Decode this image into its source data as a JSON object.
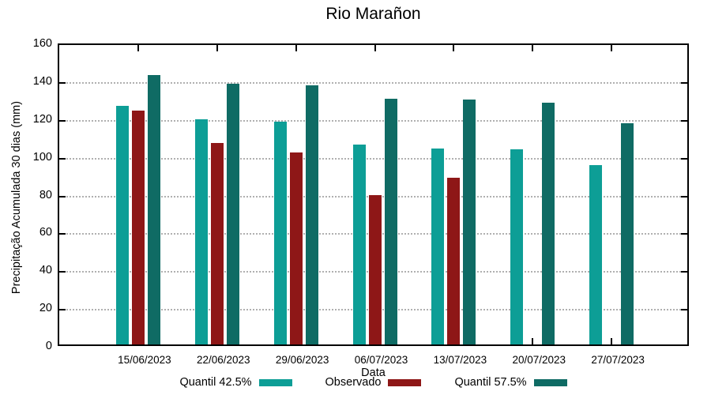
{
  "chart_data": {
    "type": "bar",
    "title": "Rio Marañon",
    "xlabel": "Data",
    "ylabel": "Precipitação Acumulada 30 dias (mm)",
    "ylim": [
      0,
      160
    ],
    "ytick_step": 20,
    "grid": "horizontal-dotted",
    "legend_position": "bottom-center",
    "categories": [
      "15/06/2023",
      "22/06/2023",
      "29/06/2023",
      "06/07/2023",
      "13/07/2023",
      "20/07/2023",
      "27/07/2023"
    ],
    "series": [
      {
        "name": "Quantil 42.5%",
        "color": "#0D9E96",
        "values": [
          126,
          119,
          118,
          105.5,
          103.5,
          103,
          95
        ]
      },
      {
        "name": "Observado",
        "color": "#8E1717",
        "values": [
          123.5,
          106.5,
          101.5,
          79,
          88,
          null,
          null
        ]
      },
      {
        "name": "Quantil 57.5%",
        "color": "#0F6B64",
        "values": [
          142.5,
          138,
          137,
          130,
          129.5,
          128,
          117
        ]
      }
    ],
    "colors": {
      "axis": "#000000",
      "grid": "#b0b0b0",
      "background": "#ffffff"
    }
  }
}
